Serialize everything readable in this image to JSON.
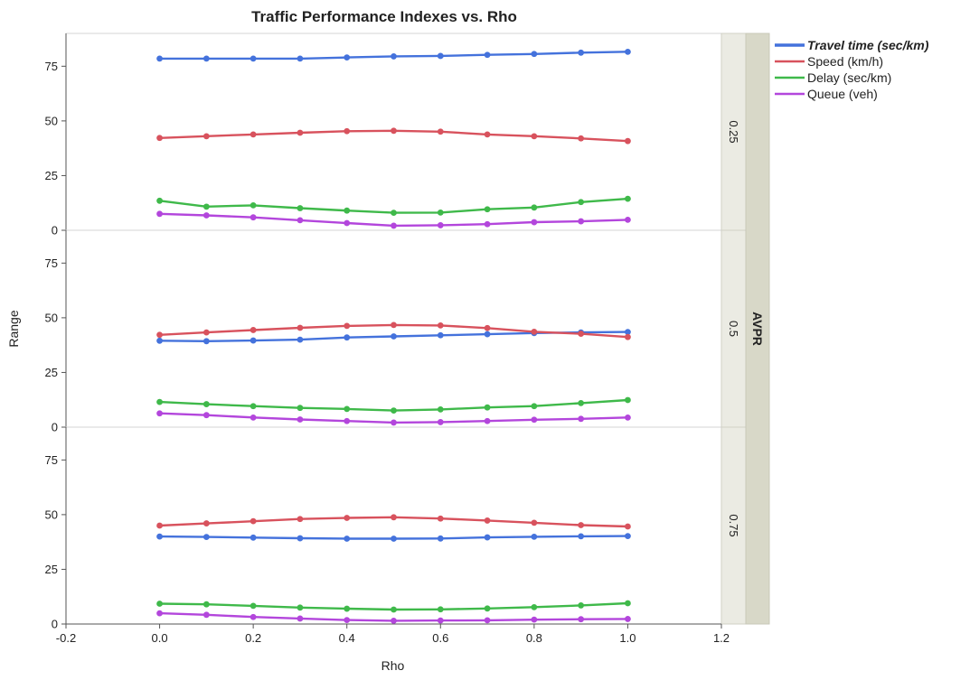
{
  "chart_data": {
    "type": "line",
    "title": "Traffic Performance Indexes vs. Rho",
    "xlabel": "Rho",
    "ylabel": "Range",
    "group_label": "AVPR",
    "xlim": [
      -0.2,
      1.2
    ],
    "x_ticks": [
      "-0.2",
      "0.0",
      "0.2",
      "0.4",
      "0.6",
      "0.8",
      "1.0",
      "1.2"
    ],
    "ylim": [
      0,
      90
    ],
    "y_ticks": [
      "0",
      "25",
      "50",
      "75"
    ],
    "grid": false,
    "legend_position": "top-right",
    "x": [
      0.0,
      0.1,
      0.2,
      0.3,
      0.4,
      0.5,
      0.6,
      0.7,
      0.8,
      0.9,
      1.0
    ],
    "series_meta": [
      {
        "name": "Travel time (sec/km)",
        "color": "#4472dc",
        "emphasis": true
      },
      {
        "name": "Speed (km/h)",
        "color": "#d8525d",
        "emphasis": false
      },
      {
        "name": "Delay (sec/km)",
        "color": "#3fb94a",
        "emphasis": false
      },
      {
        "name": "Queue (veh)",
        "color": "#b346dc",
        "emphasis": false
      }
    ],
    "panels": [
      {
        "label": "0.25",
        "series": [
          {
            "name": "Travel time (sec/km)",
            "values": [
              78.5,
              78.5,
              78.5,
              78.5,
              79,
              79.5,
              79.7,
              80.2,
              80.6,
              81.2,
              81.6
            ]
          },
          {
            "name": "Speed (km/h)",
            "values": [
              42.2,
              43,
              43.8,
              44.6,
              45.3,
              45.5,
              45.1,
              43.8,
              43,
              42,
              40.8
            ]
          },
          {
            "name": "Delay (sec/km)",
            "values": [
              13.5,
              10.8,
              11.4,
              10.1,
              9,
              8,
              8.1,
              9.6,
              10.4,
              12.9,
              14.4
            ]
          },
          {
            "name": "Queue (veh)",
            "values": [
              7.5,
              6.8,
              5.9,
              4.6,
              3.3,
              2.1,
              2.3,
              2.8,
              3.7,
              4.1,
              4.8
            ]
          }
        ]
      },
      {
        "label": "0.5",
        "series": [
          {
            "name": "Travel time (sec/km)",
            "values": [
              39.5,
              39.3,
              39.6,
              40,
              41,
              41.5,
              42,
              42.5,
              43,
              43.3,
              43.5
            ]
          },
          {
            "name": "Speed (km/h)",
            "values": [
              42.2,
              43.3,
              44.4,
              45.4,
              46.3,
              46.7,
              46.5,
              45.3,
              43.6,
              42.7,
              41.2
            ]
          },
          {
            "name": "Delay (sec/km)",
            "values": [
              11.5,
              10.5,
              9.6,
              8.8,
              8.3,
              7.6,
              8.1,
              9,
              9.6,
              11,
              12.4
            ]
          },
          {
            "name": "Queue (veh)",
            "values": [
              6.3,
              5.5,
              4.4,
              3.5,
              2.8,
              2.1,
              2.3,
              2.8,
              3.4,
              3.8,
              4.4
            ]
          }
        ]
      },
      {
        "label": "0.75",
        "series": [
          {
            "name": "Travel time (sec/km)",
            "values": [
              40,
              39.8,
              39.5,
              39.2,
              39,
              39,
              39.1,
              39.6,
              39.9,
              40.1,
              40.2
            ]
          },
          {
            "name": "Speed (km/h)",
            "values": [
              45,
              46,
              47,
              48,
              48.5,
              48.8,
              48.2,
              47.3,
              46.3,
              45.2,
              44.6
            ]
          },
          {
            "name": "Delay (sec/km)",
            "values": [
              9.3,
              9,
              8.3,
              7.5,
              7,
              6.6,
              6.7,
              7.1,
              7.7,
              8.5,
              9.5
            ]
          },
          {
            "name": "Queue (veh)",
            "values": [
              4.9,
              4.2,
              3.2,
              2.5,
              1.8,
              1.5,
              1.6,
              1.7,
              2,
              2.2,
              2.3
            ]
          }
        ]
      }
    ]
  }
}
